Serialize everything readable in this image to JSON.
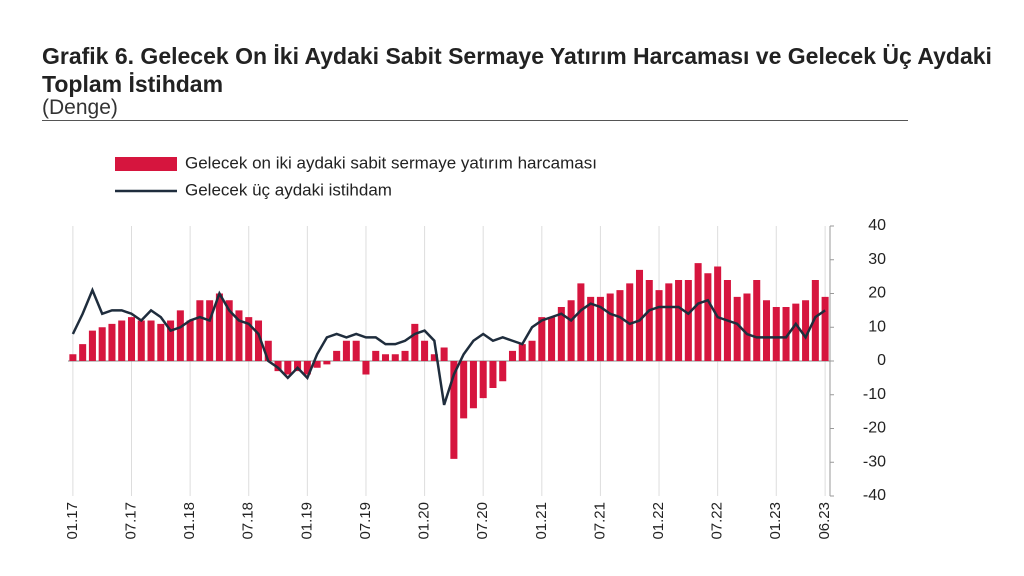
{
  "chart_data": {
    "type": "bar-line",
    "title": "Grafik 6. Gelecek On İki Aydaki Sabit Sermaye Yatırım Harcaması ve Gelecek Üç Aydaki Toplam İstihdam",
    "subtitle": "(Denge)",
    "categories": [
      "01.17",
      null,
      null,
      null,
      null,
      null,
      "07.17",
      null,
      null,
      null,
      null,
      null,
      "01.18",
      null,
      null,
      null,
      null,
      null,
      "07.18",
      null,
      null,
      null,
      null,
      null,
      "01.19",
      null,
      null,
      null,
      null,
      null,
      "07.19",
      null,
      null,
      null,
      null,
      null,
      "01.20",
      null,
      null,
      null,
      null,
      null,
      "07.20",
      null,
      null,
      null,
      null,
      null,
      "01.21",
      null,
      null,
      null,
      null,
      null,
      "07.21",
      null,
      null,
      null,
      null,
      null,
      "01.22",
      null,
      null,
      null,
      null,
      null,
      "07.22",
      null,
      null,
      null,
      null,
      null,
      "01.23",
      null,
      null,
      null,
      null,
      "06.23"
    ],
    "series": [
      {
        "name": "Gelecek on iki aydaki sabit sermaye yatırım harcaması",
        "kind": "bar",
        "color": "#d6153e",
        "values": [
          2,
          5,
          9,
          10,
          11,
          12,
          13,
          12,
          12,
          11,
          12,
          15,
          12,
          18,
          18,
          20,
          18,
          15,
          13,
          12,
          6,
          -3,
          -4,
          -3,
          -4,
          -2,
          -1,
          3,
          6,
          6,
          -4,
          3,
          2,
          2,
          3,
          11,
          6,
          2,
          4,
          -29,
          -17,
          -14,
          -11,
          -8,
          -6,
          3,
          5,
          6,
          13,
          13,
          16,
          18,
          23,
          19,
          19,
          20,
          21,
          23,
          27,
          24,
          21,
          23,
          24,
          24,
          29,
          26,
          28,
          24,
          19,
          20,
          24,
          18,
          16,
          16,
          17,
          18,
          24,
          19
        ]
      },
      {
        "name": "Gelecek üç aydaki istihdam",
        "kind": "line",
        "color": "#1f2d3d",
        "values": [
          8,
          14,
          21,
          14,
          15,
          15,
          14,
          12,
          15,
          13,
          9,
          10,
          12,
          13,
          12,
          20,
          15,
          12,
          11,
          8,
          0,
          -2,
          -5,
          -2,
          -5,
          2,
          7,
          8,
          7,
          8,
          7,
          7,
          5,
          5,
          6,
          8,
          9,
          6,
          -13,
          -4,
          2,
          6,
          8,
          6,
          7,
          6,
          5,
          10,
          12,
          13,
          14,
          12,
          15,
          17,
          16,
          14,
          13,
          11,
          12,
          15,
          16,
          16,
          16,
          14,
          17,
          18,
          13,
          12,
          11,
          8,
          7,
          7,
          7,
          7,
          11,
          7,
          13,
          15
        ]
      }
    ],
    "ylim": [
      -40,
      40
    ],
    "yticks": [
      40,
      30,
      20,
      10,
      0,
      -10,
      -20,
      -30,
      -40
    ],
    "grid": true
  }
}
